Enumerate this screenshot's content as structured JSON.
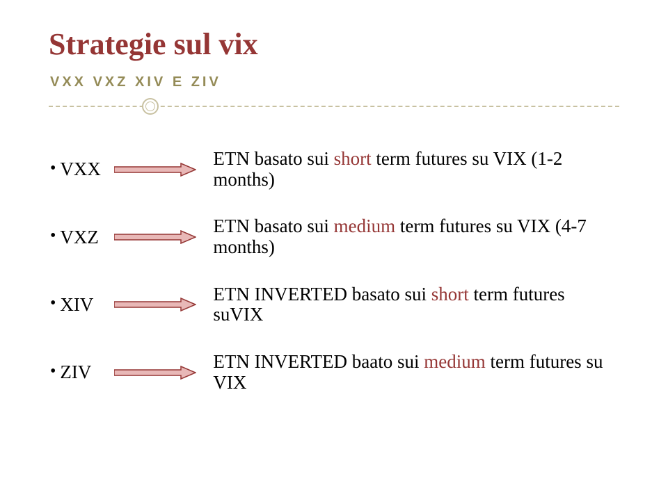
{
  "colors": {
    "title": "#953635",
    "subtitle": "#948B57",
    "divider": "#c8c1a1",
    "text": "#000000",
    "accent_short": "#953635",
    "accent_medium": "#953635",
    "arrow_fill": "#e8b8b7",
    "arrow_stroke": "#953735"
  },
  "title": "Strategie sul vix",
  "subtitle": "VXX VXZ XIV E ZIV",
  "rows": [
    {
      "label": "VXX",
      "desc_pre": "ETN basato sui ",
      "desc_accent": "short",
      "desc_post": " term futures su VIX  (1-2 months)"
    },
    {
      "label": "VXZ",
      "desc_pre": "ETN basato sui ",
      "desc_accent": "medium",
      "desc_post": " term futures su VIX (4-7 months)"
    },
    {
      "label": "XIV",
      "desc_pre": "ETN INVERTED basato sui ",
      "desc_accent": "short",
      "desc_post": " term futures suVIX"
    },
    {
      "label": "ZIV",
      "desc_pre": "ETN INVERTED baato sui ",
      "desc_accent": "medium",
      "desc_post": " term futures su VIX"
    }
  ]
}
